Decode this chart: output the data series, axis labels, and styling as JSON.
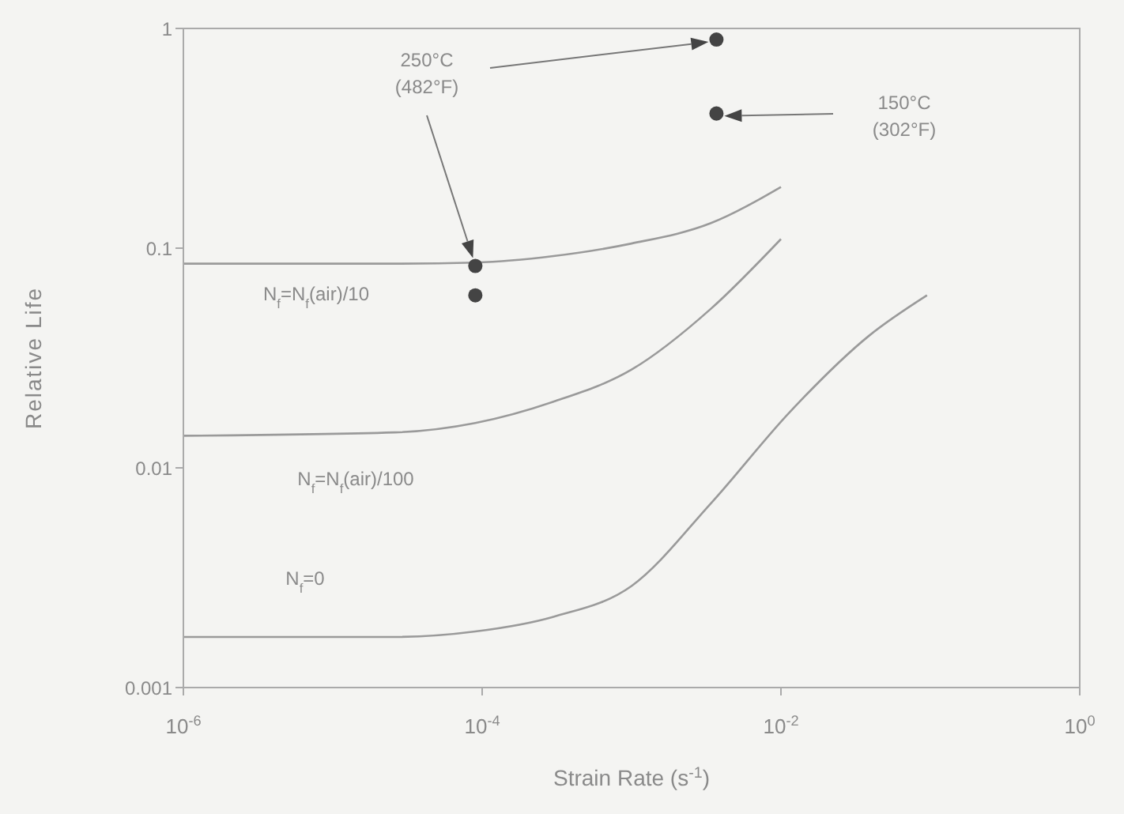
{
  "chart_data": {
    "type": "line",
    "xlabel": "Strain Rate (s$^{-1}$)",
    "ylabel": "Relative Life",
    "log": "xy",
    "marker": "none",
    "line_style": "solid",
    "xlim": [
      1e-06,
      1
    ],
    "xticks": [
      {
        "value": 1e-06,
        "label": "10$^{-6}$"
      },
      {
        "value": 0.0001,
        "label": "10$^{-4}$"
      },
      {
        "value": 0.01,
        "label": "10$^{-2}$"
      },
      {
        "value": 1,
        "label": "10$^{0}$"
      }
    ],
    "ylim": [
      0.001,
      1
    ],
    "yticks": [
      0.001,
      0.01,
      0.1,
      1
    ],
    "series": [
      {
        "name": "N$_{f}$=N$_{f}$(air)/10",
        "color": "#9a9a9a",
        "x": [
          1e-06,
          2.6e-05,
          9e-05,
          0.0003,
          0.001,
          0.0034,
          0.01
        ],
        "values": [
          0.085,
          0.085,
          0.086,
          0.092,
          0.105,
          0.13,
          0.19
        ]
      },
      {
        "name": "N$_{f}$=N$_{f}$(air)/100",
        "color": "#9a9a9a",
        "x": [
          1e-06,
          2.6e-05,
          9e-05,
          0.0003,
          0.001,
          0.0034,
          0.01
        ],
        "values": [
          0.014,
          0.0145,
          0.016,
          0.02,
          0.028,
          0.053,
          0.11
        ]
      },
      {
        "name": "N$_{f}$=0",
        "color": "#9a9a9a",
        "x": [
          1e-06,
          2.6e-05,
          9e-05,
          0.0003,
          0.001,
          0.0034,
          0.0115,
          0.039,
          0.095
        ],
        "values": [
          0.0017,
          0.0017,
          0.0018,
          0.0021,
          0.0029,
          0.0069,
          0.018,
          0.04,
          0.061
        ]
      },
      {
        "type": "scatter",
        "marker": "circle",
        "color": "#444444",
        "x": [
          9e-05,
          9e-05,
          0.0037
        ],
        "values": [
          0.083,
          0.061,
          0.89
        ]
      },
      {
        "type": "scatter",
        "marker": "circle",
        "color": "#444444",
        "x": [
          0.0037
        ],
        "values": [
          0.41
        ]
      }
    ],
    "annotations": [
      "250°C (482°F)",
      "150°C (302°F)"
    ]
  }
}
